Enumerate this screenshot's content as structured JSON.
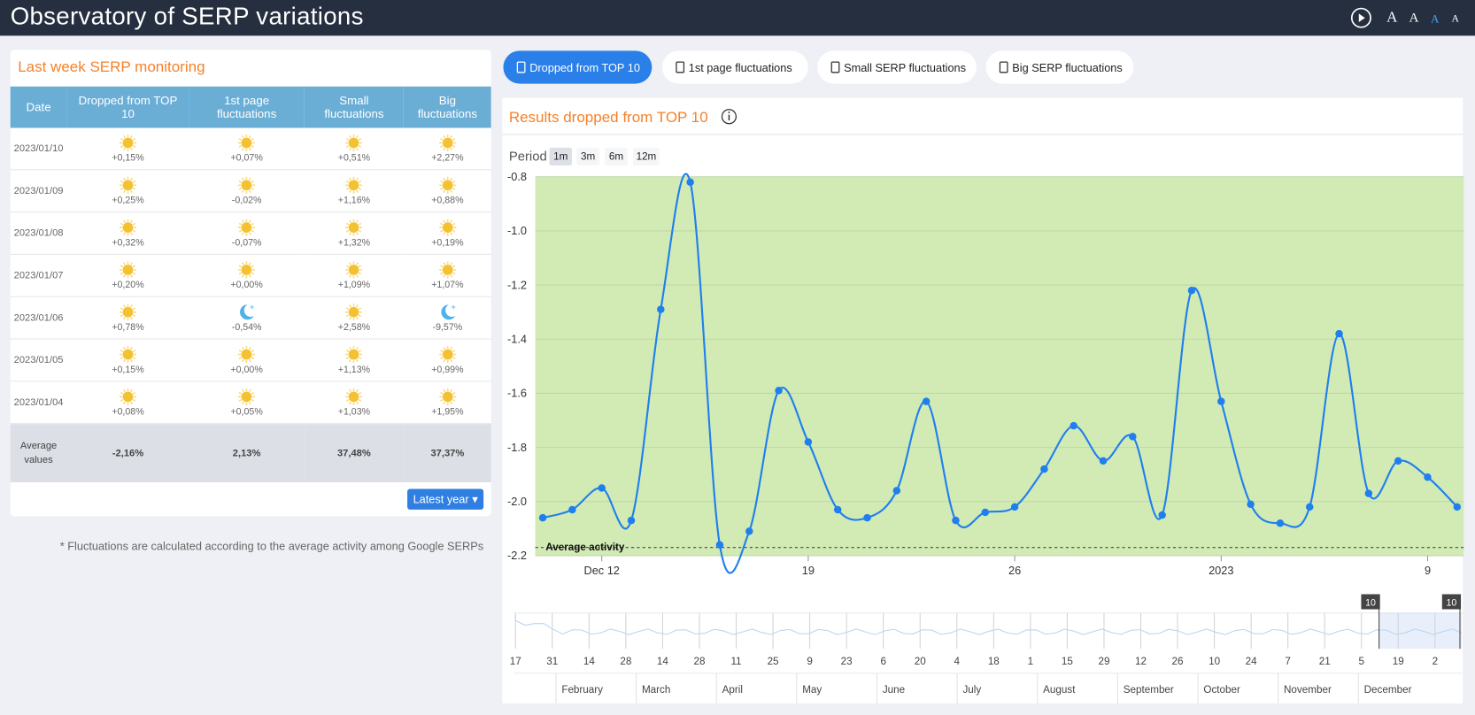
{
  "header": {
    "title": "Observatory of SERP variations",
    "font_sizes": [
      "A",
      "A",
      "A",
      "A"
    ]
  },
  "monitoring": {
    "title": "Last week SERP monitoring",
    "table": {
      "columns": [
        "Date",
        "Dropped from TOP 10",
        "1st page fluctuations",
        "Small fluctuations",
        "Big fluctuations"
      ],
      "rows": [
        {
          "date": "2023/01/10",
          "cells": [
            {
              "value": "+0,15%",
              "icon": "sun"
            },
            {
              "value": "+0,07%",
              "icon": "sun"
            },
            {
              "value": "+0,51%",
              "icon": "sun"
            },
            {
              "value": "+2,27%",
              "icon": "sun"
            }
          ]
        },
        {
          "date": "2023/01/09",
          "cells": [
            {
              "value": "+0,25%",
              "icon": "sun"
            },
            {
              "value": "-0,02%",
              "icon": "sun"
            },
            {
              "value": "+1,16%",
              "icon": "sun"
            },
            {
              "value": "+0,88%",
              "icon": "sun"
            }
          ]
        },
        {
          "date": "2023/01/08",
          "cells": [
            {
              "value": "+0,32%",
              "icon": "sun"
            },
            {
              "value": "-0,07%",
              "icon": "sun"
            },
            {
              "value": "+1,32%",
              "icon": "sun"
            },
            {
              "value": "+0,19%",
              "icon": "sun"
            }
          ]
        },
        {
          "date": "2023/01/07",
          "cells": [
            {
              "value": "+0,20%",
              "icon": "sun"
            },
            {
              "value": "+0,00%",
              "icon": "sun"
            },
            {
              "value": "+1,09%",
              "icon": "sun"
            },
            {
              "value": "+1,07%",
              "icon": "sun"
            }
          ]
        },
        {
          "date": "2023/01/06",
          "cells": [
            {
              "value": "+0,78%",
              "icon": "sun"
            },
            {
              "value": "-0,54%",
              "icon": "moon"
            },
            {
              "value": "+2,58%",
              "icon": "sun"
            },
            {
              "value": "-9,57%",
              "icon": "moon"
            }
          ]
        },
        {
          "date": "2023/01/05",
          "cells": [
            {
              "value": "+0,15%",
              "icon": "sun"
            },
            {
              "value": "+0,00%",
              "icon": "sun"
            },
            {
              "value": "+1,13%",
              "icon": "sun"
            },
            {
              "value": "+0,99%",
              "icon": "sun"
            }
          ]
        },
        {
          "date": "2023/01/04",
          "cells": [
            {
              "value": "+0,08%",
              "icon": "sun"
            },
            {
              "value": "+0,05%",
              "icon": "sun"
            },
            {
              "value": "+1,03%",
              "icon": "sun"
            },
            {
              "value": "+1,95%",
              "icon": "sun"
            }
          ]
        }
      ],
      "average": {
        "label": "Average values",
        "values": [
          "-2,16%",
          "2,13%",
          "37,48%",
          "37,37%"
        ]
      }
    },
    "button": "Latest year",
    "note": "* Fluctuations are calculated according to the average activity among Google SERPs"
  },
  "tabs": {
    "items": [
      "Dropped from TOP 10",
      "1st page fluctuations",
      "Small SERP fluctuations",
      "Big SERP fluctuations"
    ],
    "active": 0
  },
  "chart_data": {
    "type": "line",
    "title": "Results dropped from TOP 10",
    "period_label": "Period",
    "periods": [
      "1m",
      "3m",
      "6m",
      "12m"
    ],
    "active_period": 0,
    "categories": [
      null,
      null,
      "Dec 12",
      null,
      null,
      null,
      null,
      null,
      null,
      "19",
      null,
      null,
      null,
      null,
      null,
      null,
      "26",
      null,
      null,
      null,
      null,
      null,
      null,
      "2023",
      null,
      null,
      null,
      null,
      null,
      null,
      "9",
      null
    ],
    "values": [
      -2.06,
      -2.03,
      -1.95,
      -2.07,
      -1.29,
      -0.82,
      -2.16,
      -2.11,
      -1.59,
      -1.78,
      -2.03,
      -2.06,
      -1.96,
      -1.63,
      -2.07,
      -2.04,
      -2.02,
      -1.88,
      -1.72,
      -1.85,
      -1.76,
      -2.05,
      -1.22,
      -1.63,
      -2.01,
      -2.08,
      -2.02,
      -1.38,
      -1.97,
      -1.85,
      -1.91,
      -2.02
    ],
    "color": "#1f7fee",
    "background": "#d2ebb5",
    "ylim": [
      -2.2,
      -0.8
    ],
    "yticks": [
      -2.2,
      {
        "value": -2,
        "label": "-2.0"
      },
      -1.8,
      -1.6,
      -1.4,
      -1.2,
      {
        "value": -1,
        "label": "-1.0"
      },
      -0.8
    ],
    "grid": true,
    "average_line": {
      "label": "Average activity",
      "value": -2.17
    },
    "navigator": {
      "handles": [
        "10",
        "10"
      ],
      "ticks": [
        "17",
        "31",
        "14",
        "28",
        "14",
        "28",
        "11",
        "25",
        "9",
        "23",
        "6",
        "20",
        "4",
        "18",
        "1",
        "15",
        "29",
        "12",
        "26",
        "10",
        "24",
        "7",
        "21",
        "5",
        "19",
        "2"
      ],
      "months": [
        "February",
        "March",
        "April",
        "May",
        "June",
        "July",
        "August",
        "September",
        "October",
        "November",
        "December"
      ]
    }
  }
}
